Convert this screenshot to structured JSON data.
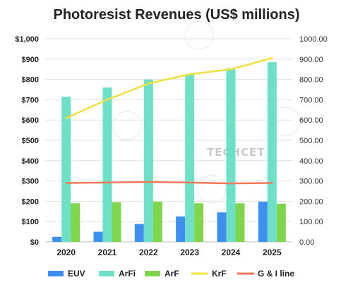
{
  "chart_data": {
    "type": "bar",
    "title": "Photoresist Revenues (US$ millions)",
    "categories": [
      "2020",
      "2021",
      "2022",
      "2023",
      "2024",
      "2025"
    ],
    "series": [
      {
        "name": "EUV",
        "kind": "bar",
        "color": "#3d8ff0",
        "values": [
          25,
          50,
          88,
          125,
          145,
          198
        ]
      },
      {
        "name": "ArFi",
        "kind": "bar",
        "color": "#6ee0c8",
        "values": [
          715,
          760,
          800,
          825,
          855,
          885
        ]
      },
      {
        "name": "ArF",
        "kind": "bar",
        "color": "#7fd64a",
        "values": [
          190,
          195,
          198,
          190,
          190,
          188
        ]
      },
      {
        "name": "KrF",
        "kind": "line",
        "color": "#f0e040",
        "values": [
          610,
          700,
          780,
          825,
          850,
          905
        ]
      },
      {
        "name": "G & I line",
        "kind": "line",
        "color": "#f07a5a",
        "values": [
          290,
          292,
          295,
          292,
          288,
          290
        ]
      }
    ],
    "y_left": {
      "min": 0,
      "max": 1000,
      "step": 100,
      "tick_labels": [
        "$0",
        "$100",
        "$200",
        "$300",
        "$400",
        "$500",
        "$600",
        "$700",
        "$800",
        "$900",
        "$1,000"
      ]
    },
    "y_right": {
      "min": 0,
      "max": 1000,
      "step": 100,
      "tick_labels": [
        "0.00",
        "100.00",
        "200.00",
        "300.00",
        "400.00",
        "500.00",
        "600.00",
        "700.00",
        "800.00",
        "900.00",
        "1000.00"
      ]
    },
    "grid": true,
    "legend_position": "bottom"
  },
  "watermark": {
    "text": "TECHCET"
  }
}
